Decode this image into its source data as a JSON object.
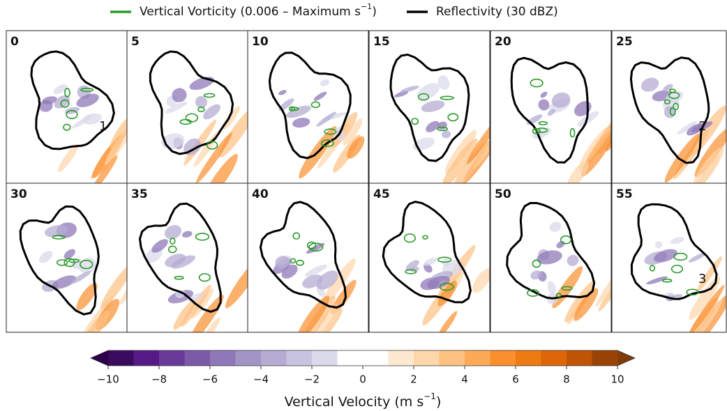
{
  "legend": {
    "items": [
      {
        "text": "Vertical Vorticity (0.006 – Maximum s",
        "sup": "−1",
        "tail": ")",
        "color": "#2a9a2a"
      },
      {
        "text": "Reflectivity (30 dBZ)",
        "color": "#000000"
      }
    ]
  },
  "panels": [
    {
      "label": "0",
      "annotation": "1"
    },
    {
      "label": "5"
    },
    {
      "label": "10"
    },
    {
      "label": "15"
    },
    {
      "label": "20"
    },
    {
      "label": "25",
      "annotation": "2"
    },
    {
      "label": "30"
    },
    {
      "label": "35"
    },
    {
      "label": "40"
    },
    {
      "label": "45"
    },
    {
      "label": "50"
    },
    {
      "label": "55",
      "annotation": "3"
    }
  ],
  "colorbar": {
    "label": {
      "text": "Vertical Velocity (m s",
      "sup": "−1",
      "tail": ")"
    },
    "lim": [
      -10,
      10
    ],
    "levels": [
      -10,
      -9,
      -8,
      -7,
      -6,
      -5,
      -4,
      -3,
      -2,
      -1,
      0,
      1,
      2,
      3,
      4,
      5,
      6,
      7,
      8,
      9,
      10
    ],
    "colors": [
      "#3a0a5e",
      "#561a86",
      "#6a3a98",
      "#7b5aa8",
      "#8f78b8",
      "#a394c6",
      "#b6acd3",
      "#c8c4e0",
      "#dbdaeb",
      "#ffffff",
      "#ffffff",
      "#fde9d2",
      "#fdd6aa",
      "#fdc182",
      "#fdaa58",
      "#f98f2d",
      "#ee7a12",
      "#dc6608",
      "#c05407",
      "#9a4306"
    ],
    "under": "#2d004b",
    "over": "#7f3b08",
    "ticks": [
      {
        "value": -10,
        "label": "−10"
      },
      {
        "value": -8,
        "label": "−8"
      },
      {
        "value": -6,
        "label": "−6"
      },
      {
        "value": -4,
        "label": "−4"
      },
      {
        "value": -2,
        "label": "−2"
      },
      0,
      2,
      4,
      6,
      8,
      10
    ]
  }
}
